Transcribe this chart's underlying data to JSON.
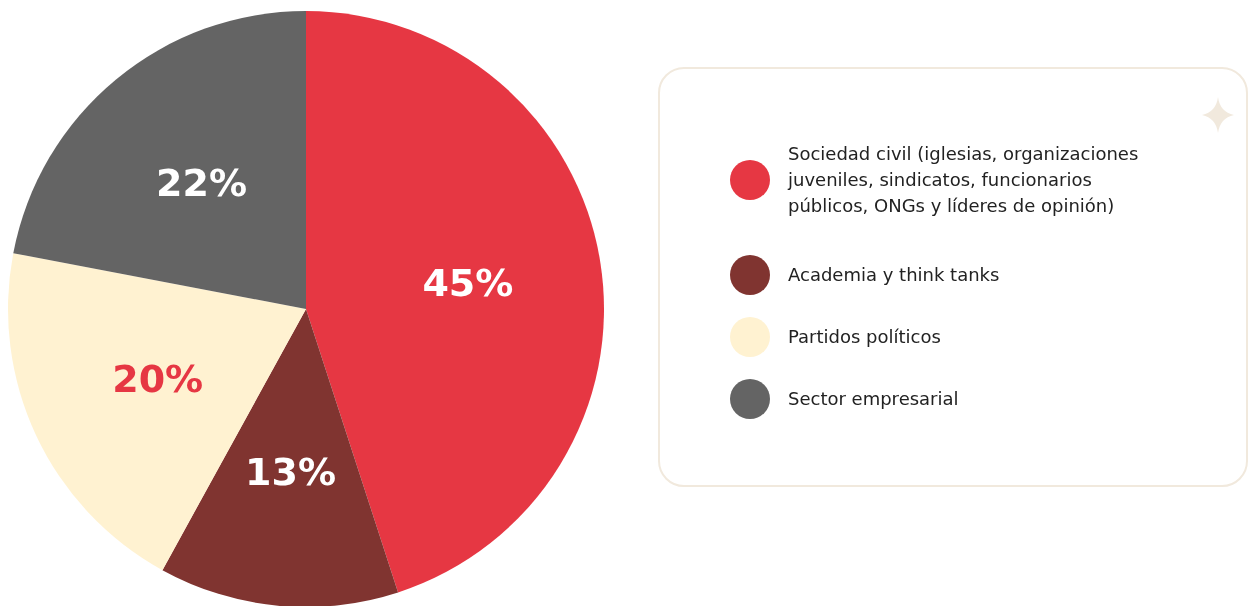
{
  "chart_data": {
    "type": "pie",
    "categories": [
      "Sociedad civil (iglesias, organizaciones juveniles, sindicatos, funcionarios públicos, ONGs y líderes de opinión)",
      "Academia y think tanks",
      "Partidos políticos",
      "Sector empresarial"
    ],
    "values": [
      45,
      13,
      20,
      22
    ],
    "colors": [
      "#e63743",
      "#803430",
      "#fff2d1",
      "#646464"
    ],
    "value_labels": [
      "45%",
      "13%",
      "20%",
      "22%"
    ],
    "legend": "right"
  }
}
